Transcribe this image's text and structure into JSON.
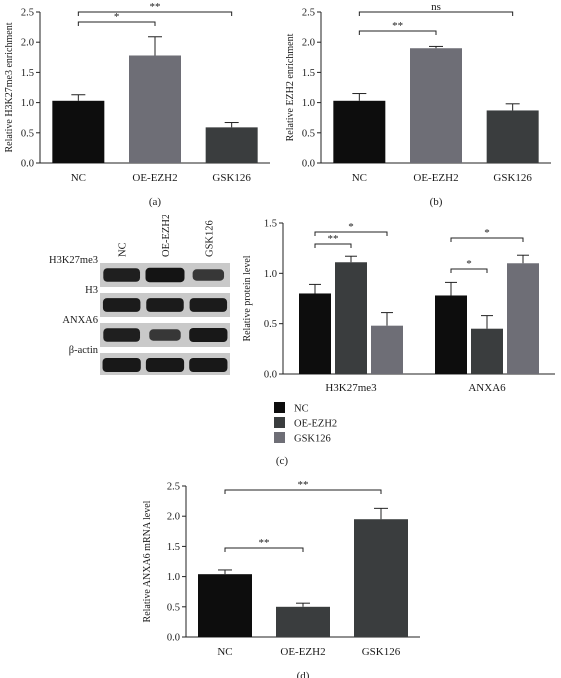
{
  "chart_data": [
    {
      "id": "a",
      "type": "bar",
      "panel_label": "(a)",
      "ylabel": "Relative H3K27me3 enrichment",
      "ylim": [
        0,
        2.5
      ],
      "yticks": [
        "0.0",
        "0.5",
        "1.0",
        "1.5",
        "2.0",
        "2.5"
      ],
      "categories": [
        "NC",
        "OE-EZH2",
        "GSK126"
      ],
      "values": [
        1.03,
        1.78,
        0.59
      ],
      "errors": [
        0.1,
        0.31,
        0.08
      ],
      "colors": [
        "#0d0d0d",
        "#6e6e76",
        "#3a3d3e"
      ],
      "significance": [
        {
          "from": 0,
          "to": 1,
          "label": "*"
        },
        {
          "from": 0,
          "to": 2,
          "label": "**"
        }
      ]
    },
    {
      "id": "b",
      "type": "bar",
      "panel_label": "(b)",
      "ylabel": "Relative EZH2 enrichment",
      "ylim": [
        0,
        2.5
      ],
      "yticks": [
        "0.0",
        "0.5",
        "1.0",
        "1.5",
        "2.0",
        "2.5"
      ],
      "categories": [
        "NC",
        "OE-EZH2",
        "GSK126"
      ],
      "values": [
        1.03,
        1.9,
        0.87
      ],
      "errors": [
        0.12,
        0.03,
        0.11
      ],
      "colors": [
        "#0d0d0d",
        "#6e6e76",
        "#3a3d3e"
      ],
      "significance": [
        {
          "from": 0,
          "to": 1,
          "label": "**"
        },
        {
          "from": 0,
          "to": 2,
          "label": "ns"
        }
      ]
    },
    {
      "id": "c",
      "type": "bar",
      "panel_label": "(c)",
      "ylabel": "Relative protein level",
      "ylim": [
        0,
        1.5
      ],
      "yticks": [
        "0.0",
        "0.5",
        "1.0",
        "1.5"
      ],
      "categories": [
        "H3K27me3",
        "ANXA6"
      ],
      "series": [
        {
          "name": "NC",
          "values": [
            0.8,
            0.78
          ],
          "errors": [
            0.09,
            0.13
          ],
          "color": "#0d0d0d"
        },
        {
          "name": "OE-EZH2",
          "values": [
            1.11,
            0.45
          ],
          "errors": [
            0.06,
            0.13
          ],
          "color": "#3a3d3e"
        },
        {
          "name": "GSK126",
          "values": [
            0.48,
            1.1
          ],
          "errors": [
            0.13,
            0.08
          ],
          "color": "#6e6e76"
        }
      ],
      "significance": [
        {
          "group": 0,
          "from": 0,
          "to": 1,
          "label": "**"
        },
        {
          "group": 0,
          "from": 0,
          "to": 2,
          "label": "*"
        },
        {
          "group": 1,
          "from": 0,
          "to": 1,
          "label": "*"
        },
        {
          "group": 1,
          "from": 0,
          "to": 2,
          "label": "*"
        }
      ],
      "legend_placement": "bottom-left"
    },
    {
      "id": "d",
      "type": "bar",
      "panel_label": "(d)",
      "ylabel": "Relative ANXA6 mRNA level",
      "ylim": [
        0,
        2.5
      ],
      "yticks": [
        "0.0",
        "0.5",
        "1.0",
        "1.5",
        "2.0",
        "2.5"
      ],
      "categories": [
        "NC",
        "OE-EZH2",
        "GSK126"
      ],
      "values": [
        1.04,
        0.5,
        1.95
      ],
      "errors": [
        0.07,
        0.06,
        0.18
      ],
      "colors": [
        "#0d0d0d",
        "#3a3d3e",
        "#3a3d3e"
      ],
      "significance": [
        {
          "from": 0,
          "to": 1,
          "label": "**"
        },
        {
          "from": 0,
          "to": 2,
          "label": "**"
        }
      ]
    }
  ],
  "blot": {
    "columns": [
      "NC",
      "OE-EZH2",
      "GSK126"
    ],
    "rows": [
      {
        "label": "H3K27me3",
        "intensity": [
          0.85,
          1.0,
          0.5
        ]
      },
      {
        "label": "H3",
        "intensity": [
          0.9,
          0.9,
          0.9
        ]
      },
      {
        "label": "ANXA6",
        "intensity": [
          0.85,
          0.5,
          0.95
        ]
      },
      {
        "label": "β-actin",
        "intensity": [
          0.95,
          0.95,
          0.95
        ]
      }
    ]
  }
}
